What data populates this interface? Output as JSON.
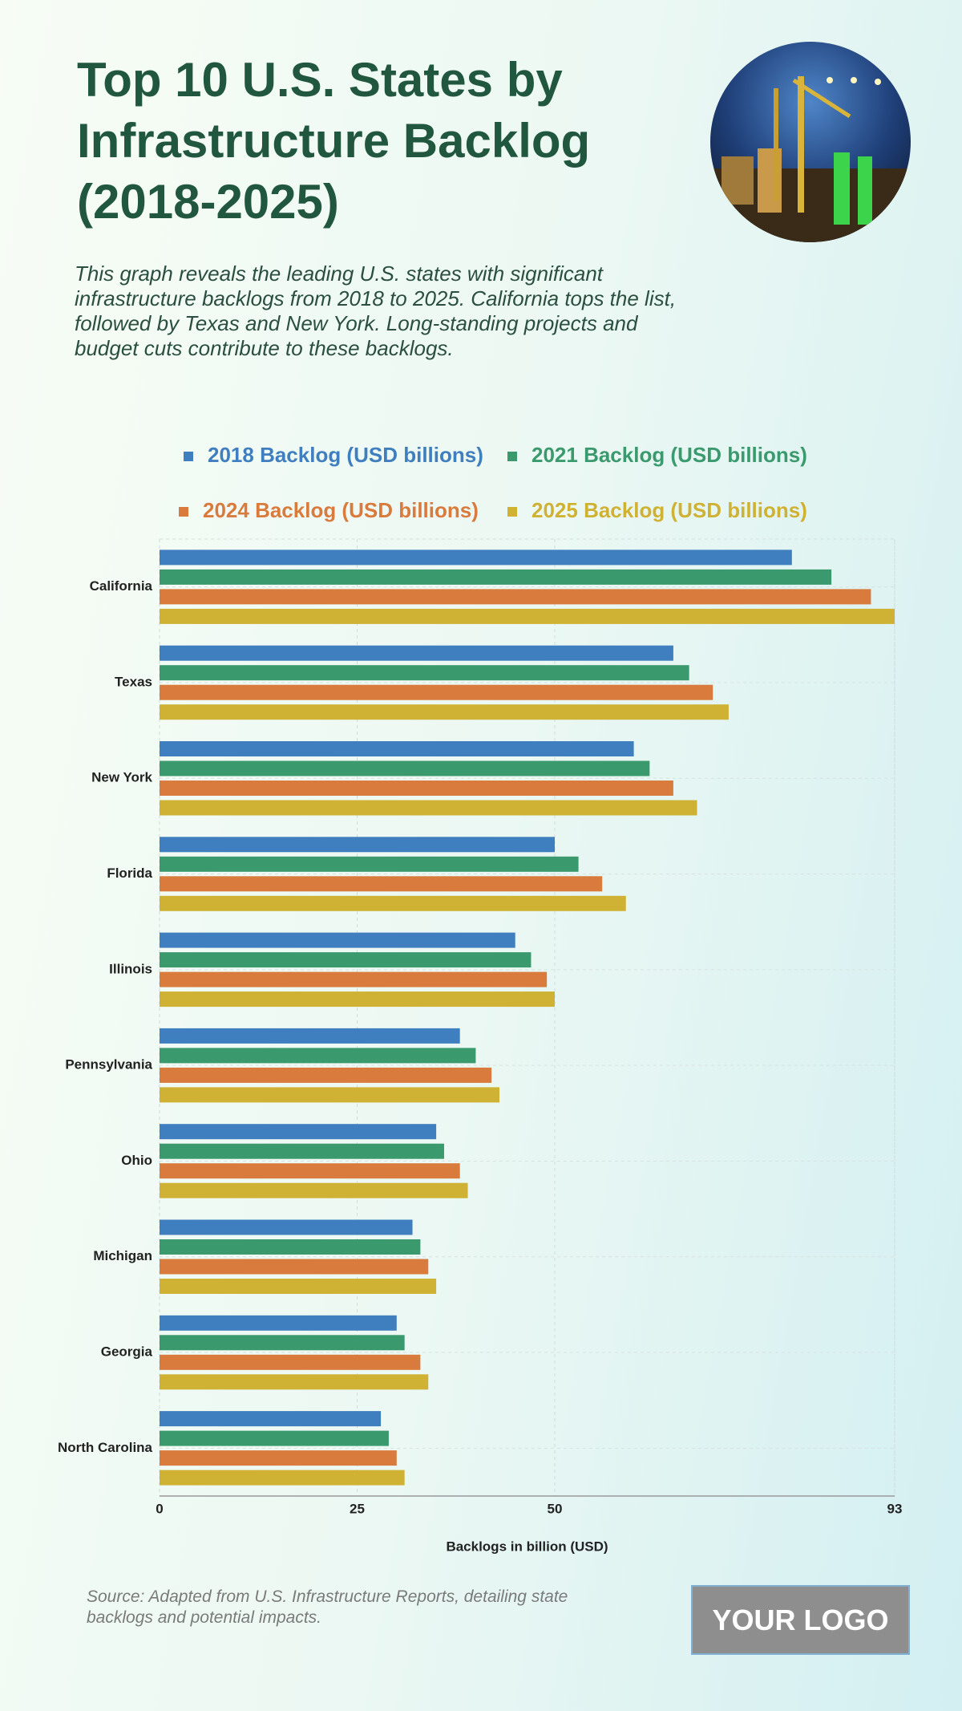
{
  "chart_data": {
    "type": "bar",
    "orientation": "horizontal",
    "title": "Top 10 U.S. States by Infrastructure Backlog (2018-2025)",
    "subtitle": "This graph reveals the leading U.S. states with significant infrastructure backlogs from 2018 to 2025. California tops the list, followed by Texas and New York. Long-standing projects and budget cuts contribute to these backlogs.",
    "categories": [
      "California",
      "Texas",
      "New York",
      "Florida",
      "Illinois",
      "Pennsylvania",
      "Ohio",
      "Michigan",
      "Georgia",
      "North Carolina"
    ],
    "series": [
      {
        "name": "2018 Backlog (USD billions)",
        "color": "#3f7fbf",
        "values": [
          80,
          65,
          60,
          50,
          45,
          38,
          35,
          32,
          30,
          28
        ]
      },
      {
        "name": "2021 Backlog (USD billions)",
        "color": "#3a9a6e",
        "values": [
          85,
          67,
          62,
          53,
          47,
          40,
          36,
          33,
          31,
          29
        ]
      },
      {
        "name": "2024 Backlog (USD billions)",
        "color": "#d97b3c",
        "values": [
          90,
          70,
          65,
          56,
          49,
          42,
          38,
          34,
          33,
          30
        ]
      },
      {
        "name": "2025 Backlog (USD billions)",
        "color": "#cfb233",
        "values": [
          93,
          72,
          68,
          59,
          50,
          43,
          39,
          35,
          34,
          31
        ]
      }
    ],
    "xlabel": "Backlogs in billion (USD)",
    "xlim": [
      0,
      93
    ],
    "xticks": [
      0,
      25,
      50,
      93
    ],
    "grid": true,
    "source": "Source: Adapted from U.S. Infrastructure Reports, detailing state backlogs and potential impacts.",
    "logo": "YOUR LOGO"
  }
}
